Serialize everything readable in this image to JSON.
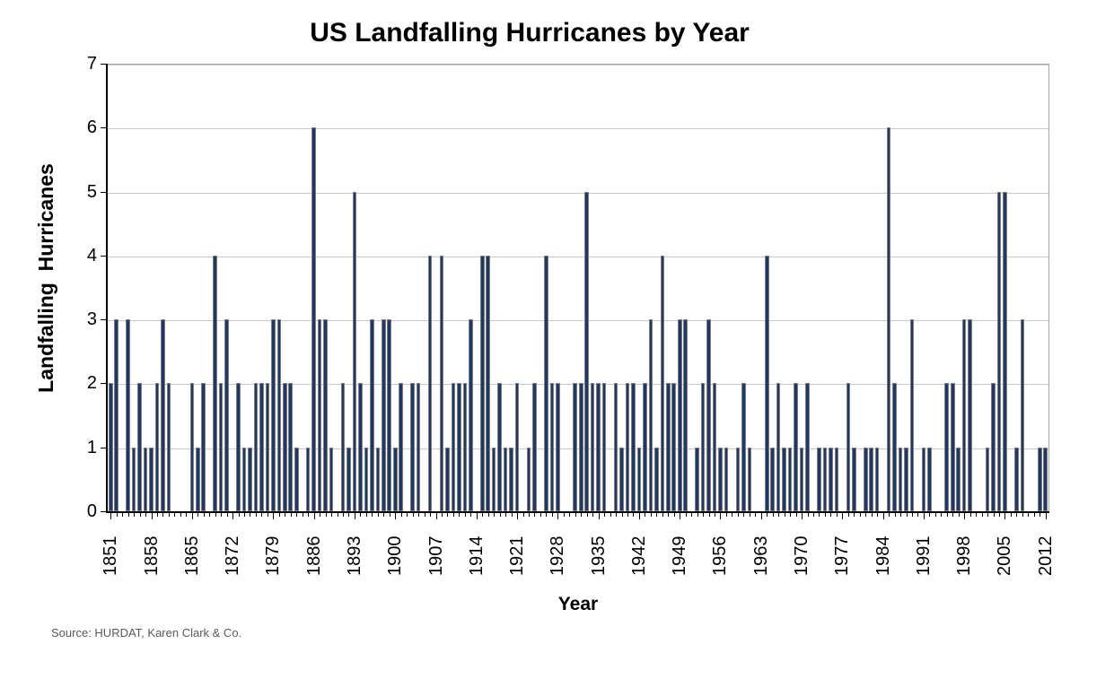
{
  "title": "US Landfalling Hurricanes by Year",
  "source_note": "Source: HURDAT, Karen Clark & Co.",
  "colors": {
    "bar_fill": "#1F3864",
    "bar_border": "#7f7f7f",
    "gridline": "#c9c9c9",
    "axis": "#000000",
    "source_text": "#5a5a5a"
  },
  "chart_data": {
    "type": "bar",
    "title": "US Landfalling Hurricanes by Year",
    "xlabel": "Year",
    "ylabel": "Landfalling  Hurricanes",
    "x_start": 1851,
    "x_end": 2012,
    "x_tick_label_interval": 7,
    "x_tick_labels": [
      "1851",
      "1858",
      "1865",
      "1872",
      "1879",
      "1886",
      "1893",
      "1900",
      "1907",
      "1914",
      "1921",
      "1928",
      "1935",
      "1942",
      "1949",
      "1956",
      "1963",
      "1970",
      "1977",
      "1984",
      "1991",
      "1998",
      "2005",
      "2012"
    ],
    "ylim": [
      0,
      7
    ],
    "y_ticks": [
      0,
      1,
      2,
      3,
      4,
      5,
      6,
      7
    ],
    "grid": "horizontal",
    "legend": "none",
    "values": [
      2,
      3,
      0,
      3,
      1,
      2,
      1,
      1,
      2,
      3,
      2,
      0,
      0,
      0,
      2,
      1,
      2,
      0,
      4,
      2,
      3,
      0,
      2,
      1,
      1,
      2,
      2,
      2,
      3,
      3,
      2,
      2,
      1,
      0,
      1,
      6,
      3,
      3,
      1,
      0,
      2,
      1,
      5,
      2,
      1,
      3,
      1,
      3,
      3,
      1,
      2,
      0,
      2,
      2,
      0,
      4,
      0,
      4,
      1,
      2,
      2,
      2,
      3,
      0,
      4,
      4,
      1,
      2,
      1,
      1,
      2,
      0,
      1,
      2,
      0,
      4,
      2,
      2,
      0,
      0,
      2,
      2,
      5,
      2,
      2,
      2,
      0,
      2,
      1,
      2,
      2,
      1,
      2,
      3,
      1,
      4,
      2,
      2,
      3,
      3,
      0,
      1,
      2,
      3,
      2,
      1,
      1,
      0,
      1,
      2,
      1,
      0,
      0,
      4,
      1,
      2,
      1,
      1,
      2,
      1,
      2,
      0,
      1,
      1,
      1,
      1,
      0,
      2,
      1,
      0,
      1,
      1,
      1,
      0,
      6,
      2,
      1,
      1,
      3,
      0,
      1,
      1,
      0,
      0,
      2,
      2,
      1,
      3,
      3,
      0,
      0,
      1,
      2,
      5,
      5,
      0,
      1,
      3,
      0,
      0,
      1,
      1
    ]
  }
}
